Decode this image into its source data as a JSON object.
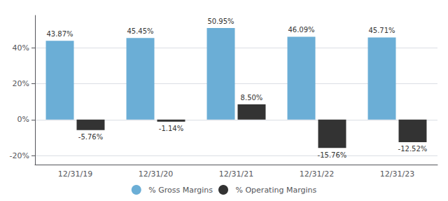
{
  "chart_data": {
    "type": "bar",
    "categories": [
      "12/31/19",
      "12/31/20",
      "12/31/21",
      "12/31/22",
      "12/31/23"
    ],
    "series": [
      {
        "name": "% Gross Margins",
        "color": "#6BAED6",
        "values": [
          43.87,
          45.45,
          50.95,
          46.09,
          45.71
        ],
        "value_labels": [
          "43.87%",
          "45.45%",
          "50.95%",
          "46.09%",
          "45.71%"
        ]
      },
      {
        "name": "% Operating Margins",
        "color": "#333333",
        "values": [
          -5.76,
          -1.14,
          8.5,
          -15.76,
          -12.52
        ],
        "value_labels": [
          "-5.76%",
          "-1.14%",
          "8.50%",
          "-15.76%",
          "-12.52%"
        ]
      }
    ],
    "ylim": [
      -25,
      58
    ],
    "yticks": [
      {
        "value": -20,
        "label": "-20%"
      },
      {
        "value": 0,
        "label": "0%"
      },
      {
        "value": 20,
        "label": "20%"
      },
      {
        "value": 40,
        "label": "40%"
      }
    ],
    "grid": true,
    "legend": "bottom",
    "data_labels": true
  }
}
